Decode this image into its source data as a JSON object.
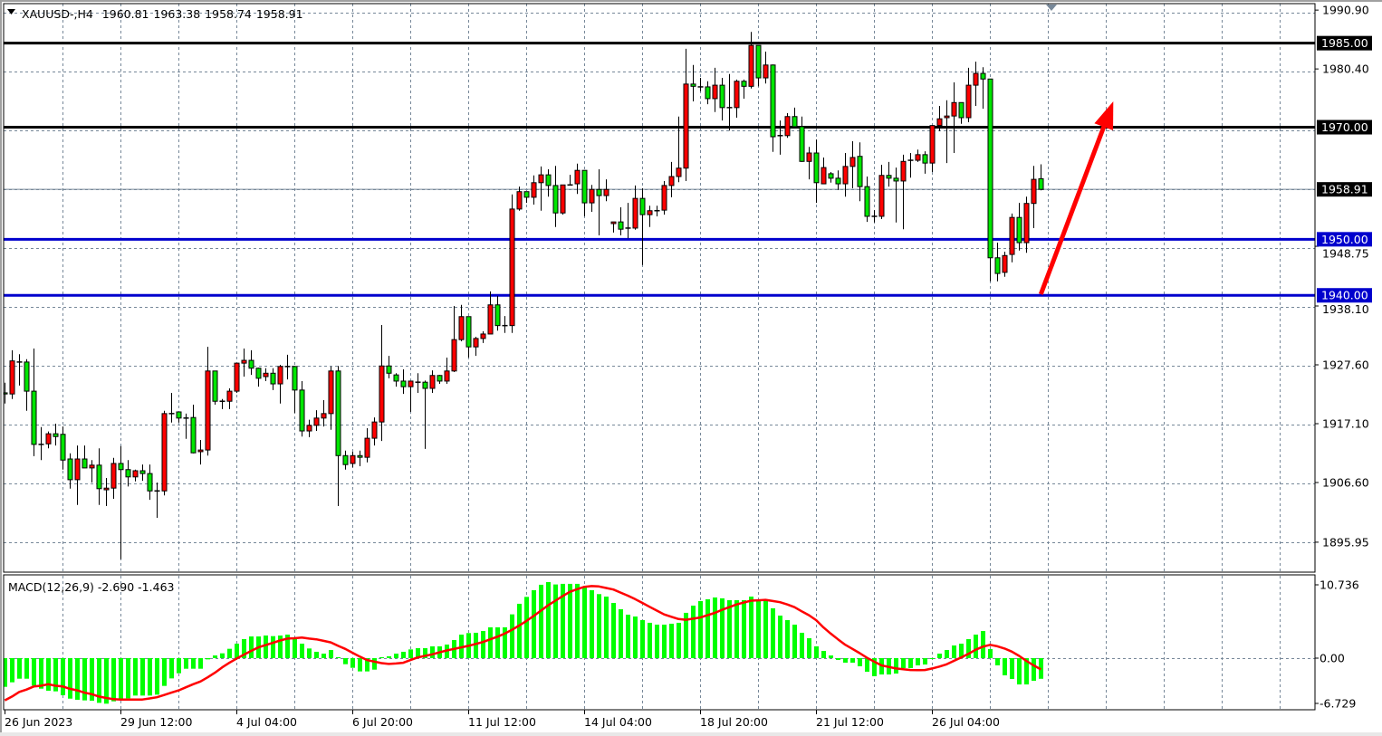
{
  "header": {
    "symbol": "XAUUSD-,H4",
    "open": "1960.81",
    "high": "1963.38",
    "low": "1958.74",
    "close": "1958.91"
  },
  "chart_data": [
    {
      "type": "candlestick",
      "title": "XAUUSD-,H4",
      "colors": {
        "bull": "#ff0000",
        "bear": "#00e600",
        "outline": "#000000",
        "grid": "#778899",
        "background": "#ffffff"
      },
      "grid": true,
      "price_axis": {
        "ticks": [
          "1990.90",
          "1980.40",
          "1948.75",
          "1938.10",
          "1927.60",
          "1917.10",
          "1906.60",
          "1895.95"
        ],
        "tick_values": [
          1990.9,
          1980.4,
          1948.75,
          1938.1,
          1927.6,
          1917.1,
          1906.6,
          1895.95
        ],
        "range": [
          1892.5,
          1992.7
        ]
      },
      "time_axis": {
        "labels": [
          "26 Jun 2023",
          "29 Jun 12:00",
          "4 Jul 04:00",
          "6 Jul 20:00",
          "11 Jul 12:00",
          "14 Jul 04:00",
          "18 Jul 20:00",
          "21 Jul 12:00",
          "26 Jul 04:00"
        ]
      },
      "current_price": {
        "value": 1958.91,
        "label": "1958.91",
        "line_color": "#778899",
        "badge_color": "#000000"
      },
      "levels": [
        {
          "value": 1985.0,
          "label": "1985.00",
          "color": "#000000"
        },
        {
          "value": 1970.0,
          "label": "1970.00",
          "color": "#000000"
        },
        {
          "value": 1950.0,
          "label": "1950.00",
          "color": "#0000cd"
        },
        {
          "value": 1940.0,
          "label": "1940.00",
          "color": "#0000cd"
        }
      ],
      "annotations": [
        {
          "type": "arrow",
          "color": "#ff0000",
          "from": {
            "bar": 143,
            "price": 1940.2
          },
          "to": {
            "bar": 153,
            "price": 1974.6
          }
        }
      ],
      "candles_ohlc": [
        [
          1922.6,
          1924.4,
          1920.7,
          1922.4
        ],
        [
          1922.4,
          1930.2,
          1921.5,
          1928.3
        ],
        [
          1928.1,
          1929.5,
          1923.9,
          1928.1
        ],
        [
          1928.1,
          1928.6,
          1919.4,
          1922.9
        ],
        [
          1922.9,
          1930.5,
          1911.3,
          1913.4
        ],
        [
          1913.4,
          1916.5,
          1910.6,
          1913.4
        ],
        [
          1913.5,
          1915.7,
          1912.7,
          1915.3
        ],
        [
          1915.3,
          1917.1,
          1913.2,
          1914.8
        ],
        [
          1915.2,
          1916.6,
          1908.9,
          1910.6
        ],
        [
          1910.8,
          1911.8,
          1905.5,
          1907.1
        ],
        [
          1907.1,
          1913.2,
          1902.6,
          1910.8
        ],
        [
          1910.8,
          1913.2,
          1909.2,
          1909.2
        ],
        [
          1909.2,
          1910.6,
          1906.6,
          1909.7
        ],
        [
          1909.7,
          1912.7,
          1902.6,
          1905.5
        ],
        [
          1905.3,
          1907.4,
          1902.4,
          1905.6
        ],
        [
          1905.6,
          1911.0,
          1903.7,
          1910.0
        ],
        [
          1910.0,
          1913.1,
          1892.9,
          1908.9
        ],
        [
          1908.9,
          1910.6,
          1905.9,
          1907.6
        ],
        [
          1907.6,
          1908.9,
          1906.8,
          1908.7
        ],
        [
          1908.7,
          1909.8,
          1906.9,
          1908.2
        ],
        [
          1908.2,
          1909.8,
          1903.5,
          1905.1
        ],
        [
          1905.1,
          1906.6,
          1900.3,
          1905.1
        ],
        [
          1905.1,
          1919.4,
          1904.3,
          1918.9
        ],
        [
          1918.9,
          1922.6,
          1917.3,
          1918.9
        ],
        [
          1919.2,
          1919.2,
          1917.3,
          1918.1
        ],
        [
          1918.1,
          1918.9,
          1914.4,
          1918.1
        ],
        [
          1918.2,
          1920.5,
          1911.8,
          1911.9
        ],
        [
          1912.1,
          1914.2,
          1909.8,
          1912.4
        ],
        [
          1912.4,
          1930.8,
          1911.4,
          1926.5
        ],
        [
          1926.5,
          1926.5,
          1920.5,
          1921.1
        ],
        [
          1921.1,
          1921.5,
          1919.7,
          1921.1
        ],
        [
          1921.1,
          1923.4,
          1919.7,
          1922.9
        ],
        [
          1922.9,
          1927.9,
          1922.6,
          1927.9
        ],
        [
          1927.9,
          1930.5,
          1925.5,
          1928.4
        ],
        [
          1928.4,
          1930.2,
          1925.8,
          1927.0
        ],
        [
          1927.0,
          1927.1,
          1923.7,
          1925.2
        ],
        [
          1925.5,
          1927.0,
          1924.7,
          1926.1
        ],
        [
          1926.1,
          1927.0,
          1923.1,
          1924.2
        ],
        [
          1924.2,
          1927.6,
          1920.7,
          1927.3
        ],
        [
          1927.3,
          1929.4,
          1925.0,
          1927.3
        ],
        [
          1927.3,
          1927.4,
          1919.0,
          1923.1
        ],
        [
          1923.1,
          1924.7,
          1914.8,
          1915.8
        ],
        [
          1915.8,
          1917.8,
          1914.7,
          1916.8
        ],
        [
          1916.8,
          1919.5,
          1915.8,
          1918.1
        ],
        [
          1918.1,
          1921.3,
          1916.6,
          1918.9
        ],
        [
          1918.9,
          1927.3,
          1916.0,
          1926.5
        ],
        [
          1926.5,
          1927.4,
          1902.4,
          1911.4
        ],
        [
          1911.4,
          1912.3,
          1908.9,
          1909.8
        ],
        [
          1910.0,
          1912.1,
          1909.3,
          1911.4
        ],
        [
          1911.4,
          1912.3,
          1909.5,
          1911.1
        ],
        [
          1911.1,
          1916.3,
          1910.2,
          1914.5
        ],
        [
          1914.5,
          1918.2,
          1913.2,
          1917.4
        ],
        [
          1917.4,
          1934.7,
          1914.0,
          1927.4
        ],
        [
          1927.4,
          1929.2,
          1925.2,
          1926.1
        ],
        [
          1925.8,
          1926.1,
          1923.7,
          1924.7
        ],
        [
          1924.7,
          1926.8,
          1922.4,
          1923.7
        ],
        [
          1923.7,
          1924.7,
          1919.2,
          1924.7
        ],
        [
          1924.5,
          1926.1,
          1922.6,
          1924.5
        ],
        [
          1924.5,
          1924.8,
          1912.6,
          1923.4
        ],
        [
          1923.4,
          1926.6,
          1922.6,
          1925.7
        ],
        [
          1925.7,
          1925.8,
          1924.2,
          1924.7
        ],
        [
          1924.7,
          1928.9,
          1924.2,
          1926.5
        ],
        [
          1926.5,
          1938.1,
          1926.3,
          1932.1
        ],
        [
          1932.1,
          1938.3,
          1931.8,
          1936.2
        ],
        [
          1936.2,
          1936.2,
          1928.9,
          1930.8
        ],
        [
          1930.8,
          1932.6,
          1929.2,
          1932.3
        ],
        [
          1932.3,
          1933.6,
          1931.5,
          1933.1
        ],
        [
          1933.1,
          1940.7,
          1933.1,
          1938.3
        ],
        [
          1938.3,
          1939.9,
          1933.7,
          1934.6
        ],
        [
          1934.6,
          1936.3,
          1933.3,
          1934.6
        ],
        [
          1934.6,
          1958.0,
          1933.3,
          1955.4
        ],
        [
          1955.4,
          1959.4,
          1955.1,
          1958.5
        ],
        [
          1958.5,
          1958.5,
          1956.5,
          1957.5
        ],
        [
          1957.5,
          1961.4,
          1956.2,
          1960.1
        ],
        [
          1960.1,
          1963.0,
          1955.1,
          1961.5
        ],
        [
          1961.5,
          1962.5,
          1957.6,
          1959.6
        ],
        [
          1959.6,
          1963.1,
          1952.2,
          1954.7
        ],
        [
          1954.7,
          1959.7,
          1954.4,
          1959.7
        ],
        [
          1959.7,
          1961.5,
          1959.6,
          1959.7
        ],
        [
          1959.9,
          1963.5,
          1958.1,
          1962.3
        ],
        [
          1962.3,
          1962.3,
          1954.1,
          1956.5
        ],
        [
          1956.5,
          1959.7,
          1954.9,
          1958.9
        ],
        [
          1958.9,
          1962.5,
          1950.7,
          1957.8
        ],
        [
          1957.8,
          1960.7,
          1956.8,
          1958.9
        ],
        [
          1952.8,
          1953.1,
          1951.2,
          1953.1
        ],
        [
          1953.1,
          1955.7,
          1950.7,
          1951.8
        ],
        [
          1952.0,
          1956.5,
          1950.2,
          1952.0
        ],
        [
          1952.0,
          1959.6,
          1951.7,
          1957.3
        ],
        [
          1957.3,
          1959.1,
          1945.4,
          1954.4
        ],
        [
          1954.4,
          1956.0,
          1952.2,
          1955.1
        ],
        [
          1955.1,
          1956.0,
          1954.1,
          1955.1
        ],
        [
          1955.2,
          1960.4,
          1954.4,
          1959.6
        ],
        [
          1959.6,
          1963.8,
          1957.5,
          1961.2
        ],
        [
          1961.2,
          1971.9,
          1960.2,
          1962.7
        ],
        [
          1962.7,
          1984.0,
          1960.4,
          1977.7
        ],
        [
          1977.7,
          1981.1,
          1974.6,
          1977.3
        ],
        [
          1977.2,
          1978.8,
          1976.4,
          1977.2
        ],
        [
          1977.2,
          1978.2,
          1974.1,
          1975.1
        ],
        [
          1975.1,
          1980.6,
          1972.7,
          1977.5
        ],
        [
          1977.5,
          1978.8,
          1971.2,
          1973.5
        ],
        [
          1973.5,
          1979.5,
          1969.4,
          1973.5
        ],
        [
          1973.5,
          1978.5,
          1971.7,
          1978.2
        ],
        [
          1978.2,
          1978.5,
          1975.1,
          1977.3
        ],
        [
          1977.3,
          1987.0,
          1976.9,
          1984.6
        ],
        [
          1984.6,
          1984.6,
          1977.3,
          1978.8
        ],
        [
          1978.8,
          1983.5,
          1977.8,
          1981.1
        ],
        [
          1981.1,
          1981.2,
          1965.6,
          1968.3
        ],
        [
          1968.5,
          1971.2,
          1965.1,
          1968.5
        ],
        [
          1968.5,
          1972.5,
          1968.1,
          1971.9
        ],
        [
          1971.9,
          1973.5,
          1970.1,
          1970.1
        ],
        [
          1970.1,
          1971.9,
          1963.8,
          1963.9
        ],
        [
          1963.9,
          1966.5,
          1960.7,
          1965.4
        ],
        [
          1965.4,
          1967.8,
          1956.5,
          1960.1
        ],
        [
          1959.9,
          1964.6,
          1959.9,
          1962.8
        ],
        [
          1961.7,
          1962.0,
          1960.1,
          1960.9
        ],
        [
          1960.9,
          1962.3,
          1958.8,
          1959.9
        ],
        [
          1959.9,
          1965.4,
          1957.6,
          1963.0
        ],
        [
          1963.0,
          1967.5,
          1959.1,
          1964.6
        ],
        [
          1964.8,
          1967.3,
          1956.8,
          1959.4
        ],
        [
          1959.4,
          1961.2,
          1953.1,
          1954.1
        ],
        [
          1954.1,
          1955.2,
          1953.0,
          1954.1
        ],
        [
          1954.1,
          1963.3,
          1953.6,
          1961.4
        ],
        [
          1961.4,
          1963.8,
          1959.4,
          1960.9
        ],
        [
          1960.9,
          1962.8,
          1953.0,
          1960.4
        ],
        [
          1960.4,
          1965.1,
          1951.8,
          1963.9
        ],
        [
          1964.1,
          1965.4,
          1961.0,
          1964.1
        ],
        [
          1964.1,
          1966.0,
          1963.8,
          1965.1
        ],
        [
          1965.1,
          1965.7,
          1961.7,
          1963.6
        ],
        [
          1963.6,
          1970.4,
          1962.0,
          1970.3
        ],
        [
          1970.3,
          1973.8,
          1969.3,
          1971.5
        ],
        [
          1971.7,
          1974.8,
          1963.6,
          1972.0
        ],
        [
          1972.0,
          1978.0,
          1965.4,
          1974.4
        ],
        [
          1974.4,
          1974.4,
          1970.6,
          1971.7
        ],
        [
          1971.7,
          1980.6,
          1970.9,
          1977.5
        ],
        [
          1977.5,
          1981.7,
          1973.8,
          1979.6
        ],
        [
          1979.6,
          1980.7,
          1973.3,
          1978.6
        ],
        [
          1978.6,
          1978.6,
          1942.5,
          1946.7
        ],
        [
          1946.7,
          1949.4,
          1942.5,
          1943.9
        ],
        [
          1944.1,
          1947.8,
          1943.3,
          1947.1
        ],
        [
          1947.3,
          1954.6,
          1945.9,
          1953.9
        ],
        [
          1953.9,
          1956.5,
          1948.0,
          1949.4
        ],
        [
          1949.4,
          1957.6,
          1947.6,
          1956.4
        ],
        [
          1956.4,
          1963.1,
          1952.0,
          1960.7
        ],
        [
          1960.81,
          1963.38,
          1958.74,
          1958.91
        ]
      ]
    },
    {
      "type": "bar",
      "title": "MACD(12,26,9) -2.690 -1.463",
      "colors": {
        "histogram": "#00ff00",
        "signal": "#ff0000"
      },
      "axis": {
        "ticks": [
          "10.736",
          "0.00",
          "-6.729"
        ],
        "tick_values": [
          10.736,
          0,
          -6.729
        ],
        "range": [
          -6.729,
          10.736
        ]
      },
      "histogram": [
        -3.74,
        -3.15,
        -2.68,
        -2.68,
        -3.58,
        -3.98,
        -4.25,
        -4.33,
        -4.84,
        -5.28,
        -5.43,
        -5.51,
        -5.55,
        -5.83,
        -5.94,
        -5.63,
        -5.28,
        -5.24,
        -4.88,
        -4.88,
        -4.88,
        -4.76,
        -3.62,
        -2.64,
        -1.97,
        -1.38,
        -1.38,
        -1.38,
        -0.16,
        0.35,
        0.63,
        1.22,
        1.89,
        2.48,
        2.83,
        2.83,
        2.95,
        2.87,
        2.95,
        3.07,
        2.56,
        1.89,
        1.26,
        0.83,
        0.59,
        1.06,
        0.12,
        -0.79,
        -1.26,
        -1.73,
        -1.73,
        -1.5,
        0.12,
        0.24,
        0.59,
        0.83,
        1.14,
        1.3,
        1.3,
        1.54,
        1.54,
        1.77,
        2.36,
        3.07,
        3.27,
        3.31,
        3.54,
        4.02,
        4.02,
        4.02,
        5.71,
        7.09,
        7.99,
        8.86,
        9.57,
        9.92,
        9.61,
        9.69,
        9.69,
        9.69,
        9.29,
        8.86,
        8.35,
        8.03,
        7.2,
        6.38,
        5.67,
        5.43,
        4.96,
        4.61,
        4.37,
        4.37,
        4.49,
        4.61,
        5.91,
        6.85,
        7.44,
        7.68,
        7.91,
        7.8,
        7.56,
        7.56,
        7.56,
        8.03,
        7.56,
        7.56,
        6.5,
        5.55,
        4.96,
        4.37,
        3.31,
        2.6,
        1.54,
        0.94,
        0.35,
        -0.24,
        -0.59,
        -0.59,
        -1.06,
        -1.77,
        -2.36,
        -2.13,
        -2.13,
        -2.01,
        -1.3,
        -1.3,
        -0.94,
        -0.83,
        0.0,
        0.59,
        1.06,
        1.65,
        1.89,
        2.48,
        3.07,
        3.54,
        1.18,
        -0.94,
        -2.24,
        -2.72,
        -3.43,
        -3.43,
        -2.95,
        -2.69
      ],
      "signal": [
        -5.5,
        -5.0,
        -4.4,
        -4.1,
        -3.7,
        -3.6,
        -3.4,
        -3.6,
        -3.7,
        -4.0,
        -4.2,
        -4.5,
        -4.7,
        -5.0,
        -5.2,
        -5.35,
        -5.4,
        -5.4,
        -5.4,
        -5.4,
        -5.25,
        -5.1,
        -4.8,
        -4.5,
        -4.2,
        -3.8,
        -3.4,
        -3.05,
        -2.5,
        -1.9,
        -1.2,
        -0.6,
        -0.05,
        0.45,
        0.95,
        1.4,
        1.7,
        2.0,
        2.3,
        2.55,
        2.6,
        2.68,
        2.55,
        2.45,
        2.25,
        2.05,
        1.6,
        1.2,
        0.7,
        0.2,
        -0.25,
        -0.45,
        -0.65,
        -0.75,
        -0.7,
        -0.6,
        -0.25,
        0.1,
        0.3,
        0.5,
        0.75,
        1.0,
        1.2,
        1.4,
        1.6,
        1.85,
        2.1,
        2.45,
        2.8,
        3.2,
        3.7,
        4.25,
        4.85,
        5.5,
        6.2,
        6.9,
        7.5,
        8.1,
        8.65,
        9.0,
        9.3,
        9.4,
        9.35,
        9.15,
        8.95,
        8.55,
        8.15,
        7.7,
        7.2,
        6.7,
        6.2,
        5.7,
        5.4,
        5.1,
        5.0,
        5.15,
        5.3,
        5.6,
        5.9,
        6.3,
        6.65,
        7.0,
        7.25,
        7.5,
        7.55,
        7.6,
        7.45,
        7.3,
        7.0,
        6.65,
        6.1,
        5.6,
        4.95,
        4.0,
        3.2,
        2.45,
        1.75,
        1.2,
        0.65,
        0.05,
        -0.45,
        -0.95,
        -1.15,
        -1.35,
        -1.45,
        -1.55,
        -1.57,
        -1.55,
        -1.35,
        -1.1,
        -0.8,
        -0.35,
        0.1,
        0.55,
        1.1,
        1.5,
        1.73,
        1.55,
        1.25,
        0.85,
        0.3,
        -0.35,
        -0.95,
        -1.46
      ]
    }
  ]
}
